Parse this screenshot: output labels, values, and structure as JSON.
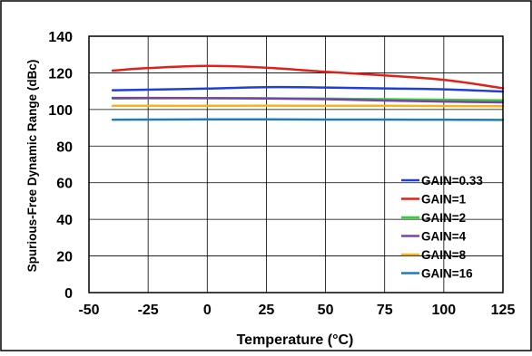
{
  "chart_data": {
    "type": "line",
    "xlabel": "Temperature (°C)",
    "ylabel": "Spurious-Free Dynamic Range (dBc)",
    "xlim": [
      -50,
      125
    ],
    "ylim": [
      0,
      140
    ],
    "xticks": [
      -50,
      -25,
      0,
      25,
      50,
      75,
      100,
      125
    ],
    "yticks": [
      0,
      20,
      40,
      60,
      80,
      100,
      120,
      140
    ],
    "grid": true,
    "legend_position": "bottom-right",
    "series": [
      {
        "name": "GAIN=0.33",
        "color": "#1f3fd6",
        "x": [
          -40,
          -25,
          0,
          25,
          50,
          75,
          100,
          125
        ],
        "y": [
          110.5,
          110.8,
          111.4,
          112.2,
          112.0,
          111.5,
          111.0,
          109.8
        ]
      },
      {
        "name": "GAIN=1",
        "color": "#e0201b",
        "x": [
          -40,
          -25,
          0,
          25,
          50,
          75,
          100,
          125
        ],
        "y": [
          121.2,
          122.6,
          123.8,
          122.8,
          120.6,
          118.6,
          116.2,
          111.6
        ]
      },
      {
        "name": "GAIN=2",
        "color": "#2fd12f",
        "x": [
          -40,
          -25,
          0,
          25,
          50,
          75,
          100,
          125
        ],
        "y": [
          106.0,
          106.1,
          106.2,
          106.1,
          105.9,
          105.6,
          105.3,
          105.0
        ]
      },
      {
        "name": "GAIN=4",
        "color": "#7b3fb0",
        "x": [
          -40,
          -25,
          0,
          25,
          50,
          75,
          100,
          125
        ],
        "y": [
          106.3,
          106.3,
          106.2,
          106.0,
          105.6,
          104.9,
          104.3,
          103.9
        ]
      },
      {
        "name": "GAIN=8",
        "color": "#f5b31c",
        "x": [
          -40,
          -25,
          0,
          25,
          50,
          75,
          100,
          125
        ],
        "y": [
          102.0,
          102.0,
          102.0,
          102.1,
          102.0,
          102.0,
          101.9,
          101.8
        ]
      },
      {
        "name": "GAIN=16",
        "color": "#1f7bb8",
        "x": [
          -40,
          -25,
          0,
          25,
          50,
          75,
          100,
          125
        ],
        "y": [
          94.4,
          94.5,
          94.6,
          94.6,
          94.5,
          94.5,
          94.4,
          94.3
        ]
      }
    ]
  }
}
